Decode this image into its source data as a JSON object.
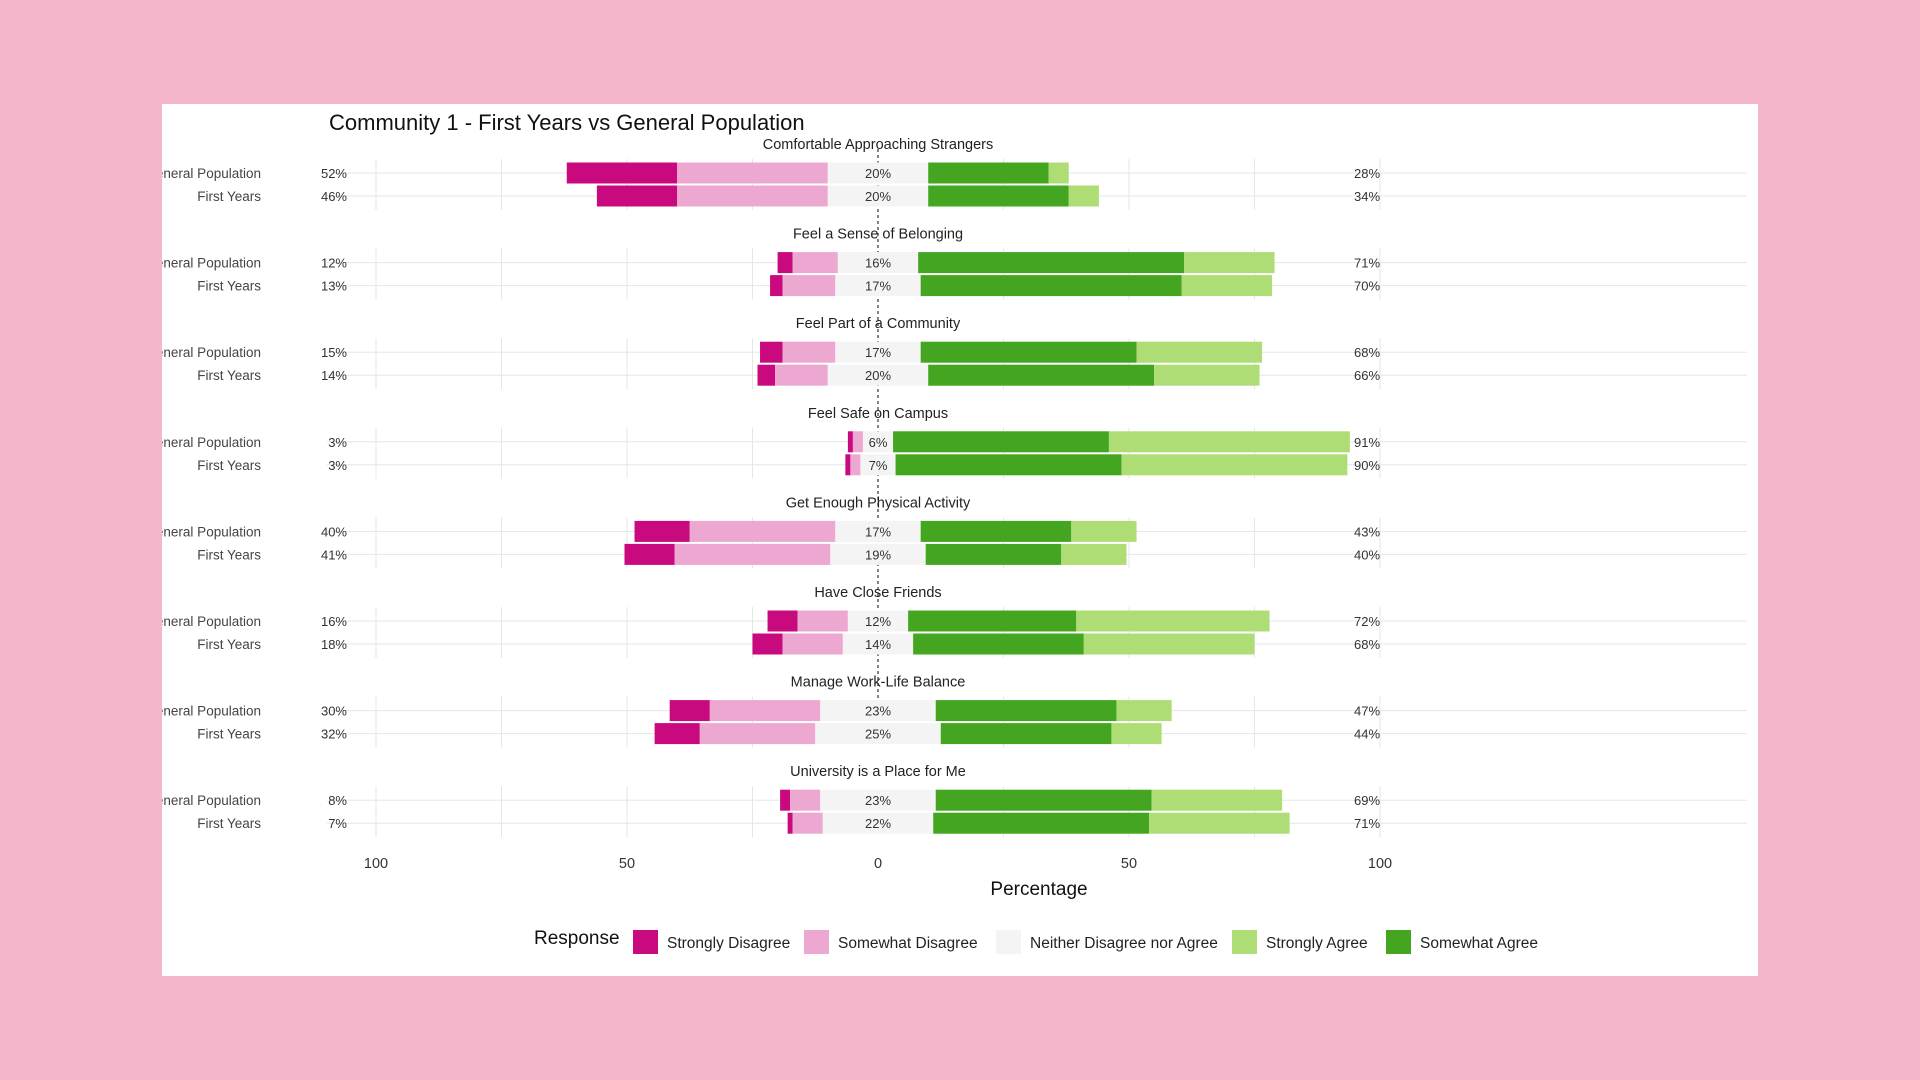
{
  "chart_data": {
    "type": "diverging-stacked-bar",
    "title": "Community 1 - First Years vs General Population",
    "xlabel": "Percentage",
    "x_ticks": [
      "100",
      "50",
      "0",
      "50",
      "100"
    ],
    "xlim": [
      -100,
      100
    ],
    "legend_title": "Response",
    "legend": [
      {
        "key": "sd",
        "label": "Strongly Disagree",
        "color": "#c80a7e"
      },
      {
        "key": "swd",
        "label": "Somewhat Disagree",
        "color": "#eda8d2"
      },
      {
        "key": "n",
        "label": "Neither Disagree nor Agree",
        "color": "#f4f4f4"
      },
      {
        "key": "sa",
        "label": "Strongly Agree",
        "color": "#aedd75"
      },
      {
        "key": "swa",
        "label": "Somewhat Agree",
        "color": "#44a521"
      }
    ],
    "panels": [
      {
        "title": "Comfortable Approaching Strangers",
        "rows": [
          {
            "group": "General Population",
            "sd": 22,
            "swd": 30,
            "n": 20,
            "swa": 24,
            "sa": 4,
            "left_label": "52%",
            "center_label": "20%",
            "right_label": "28%"
          },
          {
            "group": "First Years",
            "sd": 16,
            "swd": 30,
            "n": 20,
            "swa": 28,
            "sa": 6,
            "left_label": "46%",
            "center_label": "20%",
            "right_label": "34%"
          }
        ]
      },
      {
        "title": "Feel a Sense of Belonging",
        "rows": [
          {
            "group": "General Population",
            "sd": 3,
            "swd": 9,
            "n": 16,
            "swa": 53,
            "sa": 18,
            "left_label": "12%",
            "center_label": "16%",
            "right_label": "71%"
          },
          {
            "group": "First Years",
            "sd": 2.5,
            "swd": 10.5,
            "n": 17,
            "swa": 52,
            "sa": 18,
            "left_label": "13%",
            "center_label": "17%",
            "right_label": "70%"
          }
        ]
      },
      {
        "title": "Feel Part of a Community",
        "rows": [
          {
            "group": "General Population",
            "sd": 4.5,
            "swd": 10.5,
            "n": 17,
            "swa": 43,
            "sa": 25,
            "left_label": "15%",
            "center_label": "17%",
            "right_label": "68%"
          },
          {
            "group": "First Years",
            "sd": 3.5,
            "swd": 10.5,
            "n": 20,
            "swa": 45,
            "sa": 21,
            "left_label": "14%",
            "center_label": "20%",
            "right_label": "66%"
          }
        ]
      },
      {
        "title": "Feel Safe on Campus",
        "rows": [
          {
            "group": "General Population",
            "sd": 1,
            "swd": 2,
            "n": 6,
            "swa": 43,
            "sa": 48,
            "left_label": "3%",
            "center_label": "6%",
            "right_label": "91%"
          },
          {
            "group": "First Years",
            "sd": 1,
            "swd": 2,
            "n": 7,
            "swa": 45,
            "sa": 45,
            "left_label": "3%",
            "center_label": "7%",
            "right_label": "90%"
          }
        ]
      },
      {
        "title": "Get Enough Physical Activity",
        "rows": [
          {
            "group": "General Population",
            "sd": 11,
            "swd": 29,
            "n": 17,
            "swa": 30,
            "sa": 13,
            "left_label": "40%",
            "center_label": "17%",
            "right_label": "43%"
          },
          {
            "group": "First Years",
            "sd": 10,
            "swd": 31,
            "n": 19,
            "swa": 27,
            "sa": 13,
            "left_label": "41%",
            "center_label": "19%",
            "right_label": "40%"
          }
        ]
      },
      {
        "title": "Have Close Friends",
        "rows": [
          {
            "group": "General Population",
            "sd": 6,
            "swd": 10,
            "n": 12,
            "swa": 33.5,
            "sa": 38.5,
            "left_label": "16%",
            "center_label": "12%",
            "right_label": "72%"
          },
          {
            "group": "First Years",
            "sd": 6,
            "swd": 12,
            "n": 14,
            "swa": 34,
            "sa": 34,
            "left_label": "18%",
            "center_label": "14%",
            "right_label": "68%"
          }
        ]
      },
      {
        "title": "Manage Work-Life Balance",
        "rows": [
          {
            "group": "General Population",
            "sd": 8,
            "swd": 22,
            "n": 23,
            "swa": 36,
            "sa": 11,
            "left_label": "30%",
            "center_label": "23%",
            "right_label": "47%"
          },
          {
            "group": "First Years",
            "sd": 9,
            "swd": 23,
            "n": 25,
            "swa": 34,
            "sa": 10,
            "left_label": "32%",
            "center_label": "25%",
            "right_label": "44%"
          }
        ]
      },
      {
        "title": "University is a Place for Me",
        "rows": [
          {
            "group": "General Population",
            "sd": 2,
            "swd": 6,
            "n": 23,
            "swa": 43,
            "sa": 26,
            "left_label": "8%",
            "center_label": "23%",
            "right_label": "69%"
          },
          {
            "group": "First Years",
            "sd": 1,
            "swd": 6,
            "n": 22,
            "swa": 43,
            "sa": 28,
            "left_label": "7%",
            "center_label": "22%",
            "right_label": "71%"
          }
        ]
      }
    ]
  }
}
